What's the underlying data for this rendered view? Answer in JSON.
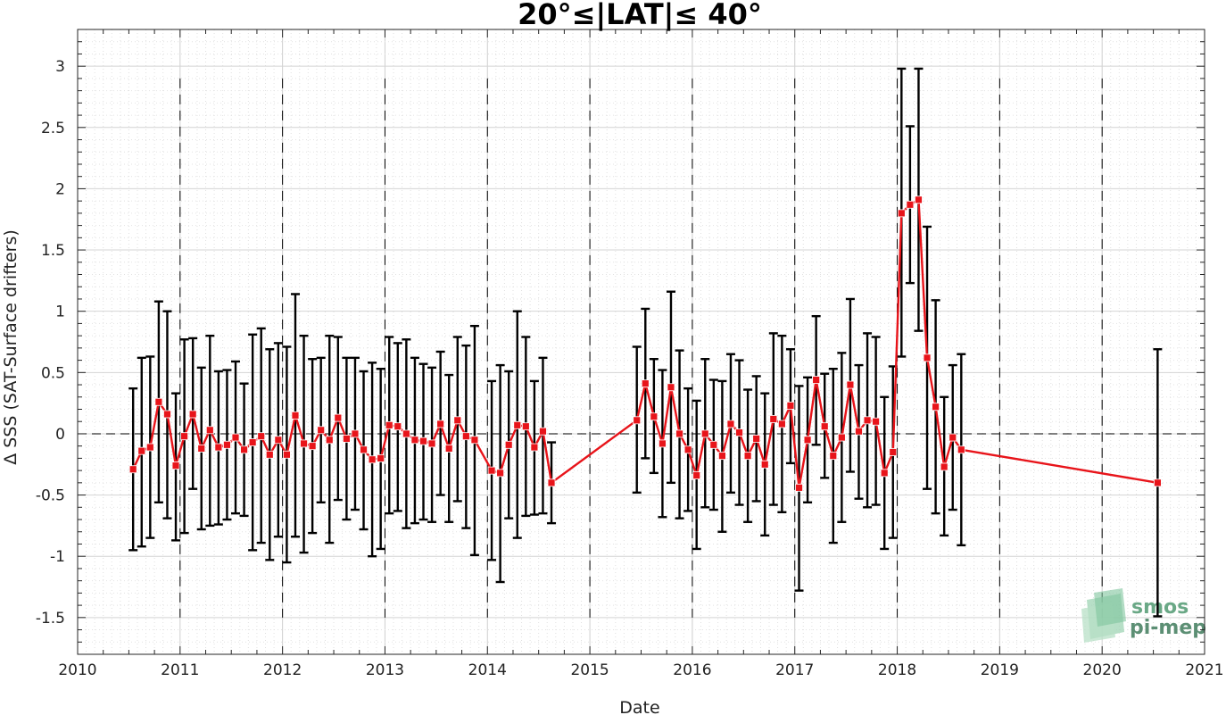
{
  "chart_data": {
    "type": "line",
    "title": "20°≤|LAT|≤ 40°",
    "xlabel": "Date",
    "ylabel": "Δ SSS (SAT-Surface drifters)",
    "xlim": [
      2010,
      2021
    ],
    "ylim": [
      -1.8,
      3.3
    ],
    "x_ticks": [
      "2010",
      "2011",
      "2012",
      "2013",
      "2014",
      "2015",
      "2016",
      "2017",
      "2018",
      "2019",
      "2020",
      "2021"
    ],
    "y_ticks": [
      "-1.5",
      "-1",
      "-0.5",
      "0",
      "0.5",
      "1",
      "1.5",
      "2",
      "2.5",
      "3"
    ],
    "grid": true,
    "zero_line": 0,
    "year_dividers": [
      2011,
      2012,
      2013,
      2014,
      2015,
      2016,
      2017,
      2018,
      2019,
      2020
    ],
    "colors": {
      "series": "#e8141a",
      "errorbar": "#000000",
      "grid": "#d9d9d9"
    },
    "series": [
      {
        "segments": [
          [
            {
              "x": "2010-07",
              "y": -0.29,
              "lo": -0.95,
              "hi": 0.37
            },
            {
              "x": "2010-08",
              "y": -0.14,
              "lo": -0.92,
              "hi": 0.62
            },
            {
              "x": "2010-09",
              "y": -0.11,
              "lo": -0.85,
              "hi": 0.63
            },
            {
              "x": "2010-10",
              "y": 0.26,
              "lo": -0.56,
              "hi": 1.08
            },
            {
              "x": "2010-11",
              "y": 0.16,
              "lo": -0.69,
              "hi": 1.0
            },
            {
              "x": "2010-12",
              "y": -0.26,
              "lo": -0.87,
              "hi": 0.33
            },
            {
              "x": "2011-01",
              "y": -0.02,
              "lo": -0.81,
              "hi": 0.77
            },
            {
              "x": "2011-02",
              "y": 0.16,
              "lo": -0.45,
              "hi": 0.78
            },
            {
              "x": "2011-03",
              "y": -0.12,
              "lo": -0.78,
              "hi": 0.54
            },
            {
              "x": "2011-04",
              "y": 0.03,
              "lo": -0.75,
              "hi": 0.8
            },
            {
              "x": "2011-05",
              "y": -0.11,
              "lo": -0.74,
              "hi": 0.51
            },
            {
              "x": "2011-06",
              "y": -0.09,
              "lo": -0.7,
              "hi": 0.52
            },
            {
              "x": "2011-07",
              "y": -0.03,
              "lo": -0.65,
              "hi": 0.59
            },
            {
              "x": "2011-08",
              "y": -0.13,
              "lo": -0.67,
              "hi": 0.41
            },
            {
              "x": "2011-09",
              "y": -0.07,
              "lo": -0.95,
              "hi": 0.81
            },
            {
              "x": "2011-10",
              "y": -0.02,
              "lo": -0.89,
              "hi": 0.86
            },
            {
              "x": "2011-11",
              "y": -0.17,
              "lo": -1.03,
              "hi": 0.69
            },
            {
              "x": "2011-12",
              "y": -0.05,
              "lo": -0.84,
              "hi": 0.74
            },
            {
              "x": "2012-01",
              "y": -0.17,
              "lo": -1.05,
              "hi": 0.71
            },
            {
              "x": "2012-02",
              "y": 0.15,
              "lo": -0.84,
              "hi": 1.14
            },
            {
              "x": "2012-03",
              "y": -0.08,
              "lo": -0.97,
              "hi": 0.8
            },
            {
              "x": "2012-04",
              "y": -0.1,
              "lo": -0.81,
              "hi": 0.61
            },
            {
              "x": "2012-05",
              "y": 0.03,
              "lo": -0.56,
              "hi": 0.62
            },
            {
              "x": "2012-06",
              "y": -0.05,
              "lo": -0.89,
              "hi": 0.8
            },
            {
              "x": "2012-07",
              "y": 0.13,
              "lo": -0.54,
              "hi": 0.79
            },
            {
              "x": "2012-08",
              "y": -0.04,
              "lo": -0.7,
              "hi": 0.62
            },
            {
              "x": "2012-09",
              "y": 0.0,
              "lo": -0.62,
              "hi": 0.62
            },
            {
              "x": "2012-10",
              "y": -0.13,
              "lo": -0.78,
              "hi": 0.51
            },
            {
              "x": "2012-11",
              "y": -0.21,
              "lo": -1.0,
              "hi": 0.58
            },
            {
              "x": "2012-12",
              "y": -0.2,
              "lo": -0.94,
              "hi": 0.53
            },
            {
              "x": "2013-01",
              "y": 0.07,
              "lo": -0.65,
              "hi": 0.79
            },
            {
              "x": "2013-02",
              "y": 0.06,
              "lo": -0.63,
              "hi": 0.74
            },
            {
              "x": "2013-03",
              "y": 0.0,
              "lo": -0.77,
              "hi": 0.77
            },
            {
              "x": "2013-04",
              "y": -0.05,
              "lo": -0.73,
              "hi": 0.62
            },
            {
              "x": "2013-05",
              "y": -0.06,
              "lo": -0.7,
              "hi": 0.57
            },
            {
              "x": "2013-06",
              "y": -0.08,
              "lo": -0.72,
              "hi": 0.54
            },
            {
              "x": "2013-07",
              "y": 0.08,
              "lo": -0.5,
              "hi": 0.67
            },
            {
              "x": "2013-08",
              "y": -0.12,
              "lo": -0.72,
              "hi": 0.48
            },
            {
              "x": "2013-09",
              "y": 0.11,
              "lo": -0.55,
              "hi": 0.79
            },
            {
              "x": "2013-10",
              "y": -0.02,
              "lo": -0.77,
              "hi": 0.72
            },
            {
              "x": "2013-11",
              "y": -0.05,
              "lo": -0.99,
              "hi": 0.88
            },
            {
              "x": "2014-01",
              "y": -0.3,
              "lo": -1.03,
              "hi": 0.43
            },
            {
              "x": "2014-02",
              "y": -0.32,
              "lo": -1.21,
              "hi": 0.56
            },
            {
              "x": "2014-03",
              "y": -0.09,
              "lo": -0.69,
              "hi": 0.51
            },
            {
              "x": "2014-04",
              "y": 0.07,
              "lo": -0.85,
              "hi": 1.0
            },
            {
              "x": "2014-05",
              "y": 0.06,
              "lo": -0.67,
              "hi": 0.79
            },
            {
              "x": "2014-06",
              "y": -0.11,
              "lo": -0.66,
              "hi": 0.43
            },
            {
              "x": "2014-07",
              "y": 0.02,
              "lo": -0.65,
              "hi": 0.62
            },
            {
              "x": "2014-08",
              "y": -0.4,
              "lo": -0.73,
              "hi": -0.07
            },
            {
              "x": "2015-06",
              "y": 0.11,
              "lo": -0.48,
              "hi": 0.71
            },
            {
              "x": "2015-07",
              "y": 0.41,
              "lo": -0.2,
              "hi": 1.02
            },
            {
              "x": "2015-08",
              "y": 0.14,
              "lo": -0.32,
              "hi": 0.61
            },
            {
              "x": "2015-09",
              "y": -0.08,
              "lo": -0.68,
              "hi": 0.52
            },
            {
              "x": "2015-10",
              "y": 0.38,
              "lo": -0.4,
              "hi": 1.16
            },
            {
              "x": "2015-11",
              "y": 0.0,
              "lo": -0.69,
              "hi": 0.68
            },
            {
              "x": "2015-12",
              "y": -0.13,
              "lo": -0.63,
              "hi": 0.37
            },
            {
              "x": "2016-01",
              "y": -0.34,
              "lo": -0.94,
              "hi": 0.27
            },
            {
              "x": "2016-02",
              "y": 0.0,
              "lo": -0.6,
              "hi": 0.61
            },
            {
              "x": "2016-03",
              "y": -0.09,
              "lo": -0.62,
              "hi": 0.44
            },
            {
              "x": "2016-04",
              "y": -0.18,
              "lo": -0.8,
              "hi": 0.43
            },
            {
              "x": "2016-05",
              "y": 0.08,
              "lo": -0.48,
              "hi": 0.65
            },
            {
              "x": "2016-06",
              "y": 0.01,
              "lo": -0.58,
              "hi": 0.6
            },
            {
              "x": "2016-07",
              "y": -0.18,
              "lo": -0.72,
              "hi": 0.36
            },
            {
              "x": "2016-08",
              "y": -0.04,
              "lo": -0.55,
              "hi": 0.47
            },
            {
              "x": "2016-09",
              "y": -0.25,
              "lo": -0.83,
              "hi": 0.33
            },
            {
              "x": "2016-10",
              "y": 0.12,
              "lo": -0.58,
              "hi": 0.82
            },
            {
              "x": "2016-11",
              "y": 0.08,
              "lo": -0.64,
              "hi": 0.8
            },
            {
              "x": "2016-12",
              "y": 0.23,
              "lo": -0.24,
              "hi": 0.69
            },
            {
              "x": "2017-01",
              "y": -0.44,
              "lo": -1.28,
              "hi": 0.39
            },
            {
              "x": "2017-02",
              "y": -0.05,
              "lo": -0.56,
              "hi": 0.46
            },
            {
              "x": "2017-03",
              "y": 0.44,
              "lo": -0.09,
              "hi": 0.96
            },
            {
              "x": "2017-04",
              "y": 0.06,
              "lo": -0.36,
              "hi": 0.49
            },
            {
              "x": "2017-05",
              "y": -0.18,
              "lo": -0.89,
              "hi": 0.53
            },
            {
              "x": "2017-06",
              "y": -0.03,
              "lo": -0.72,
              "hi": 0.66
            },
            {
              "x": "2017-07",
              "y": 0.4,
              "lo": -0.31,
              "hi": 1.1
            },
            {
              "x": "2017-08",
              "y": 0.02,
              "lo": -0.53,
              "hi": 0.56
            },
            {
              "x": "2017-09",
              "y": 0.11,
              "lo": -0.6,
              "hi": 0.82
            },
            {
              "x": "2017-10",
              "y": 0.1,
              "lo": -0.58,
              "hi": 0.79
            },
            {
              "x": "2017-11",
              "y": -0.32,
              "lo": -0.94,
              "hi": 0.3
            },
            {
              "x": "2017-12",
              "y": -0.15,
              "lo": -0.85,
              "hi": 0.55
            },
            {
              "x": "2018-01",
              "y": 1.8,
              "lo": 0.63,
              "hi": 2.98
            },
            {
              "x": "2018-02",
              "y": 1.87,
              "lo": 1.23,
              "hi": 2.51
            },
            {
              "x": "2018-03",
              "y": 1.91,
              "lo": 0.84,
              "hi": 2.98
            },
            {
              "x": "2018-04",
              "y": 0.62,
              "lo": -0.45,
              "hi": 1.69
            },
            {
              "x": "2018-05",
              "y": 0.22,
              "lo": -0.65,
              "hi": 1.09
            },
            {
              "x": "2018-06",
              "y": -0.27,
              "lo": -0.83,
              "hi": 0.3
            },
            {
              "x": "2018-07",
              "y": -0.03,
              "lo": -0.62,
              "hi": 0.56
            },
            {
              "x": "2018-08",
              "y": -0.13,
              "lo": -0.91,
              "hi": 0.65
            },
            {
              "x": "2020-07",
              "y": -0.4,
              "lo": -1.49,
              "hi": 0.69
            }
          ]
        ]
      }
    ]
  },
  "logo": {
    "line1": "smos",
    "line2": "pi-mep"
  }
}
